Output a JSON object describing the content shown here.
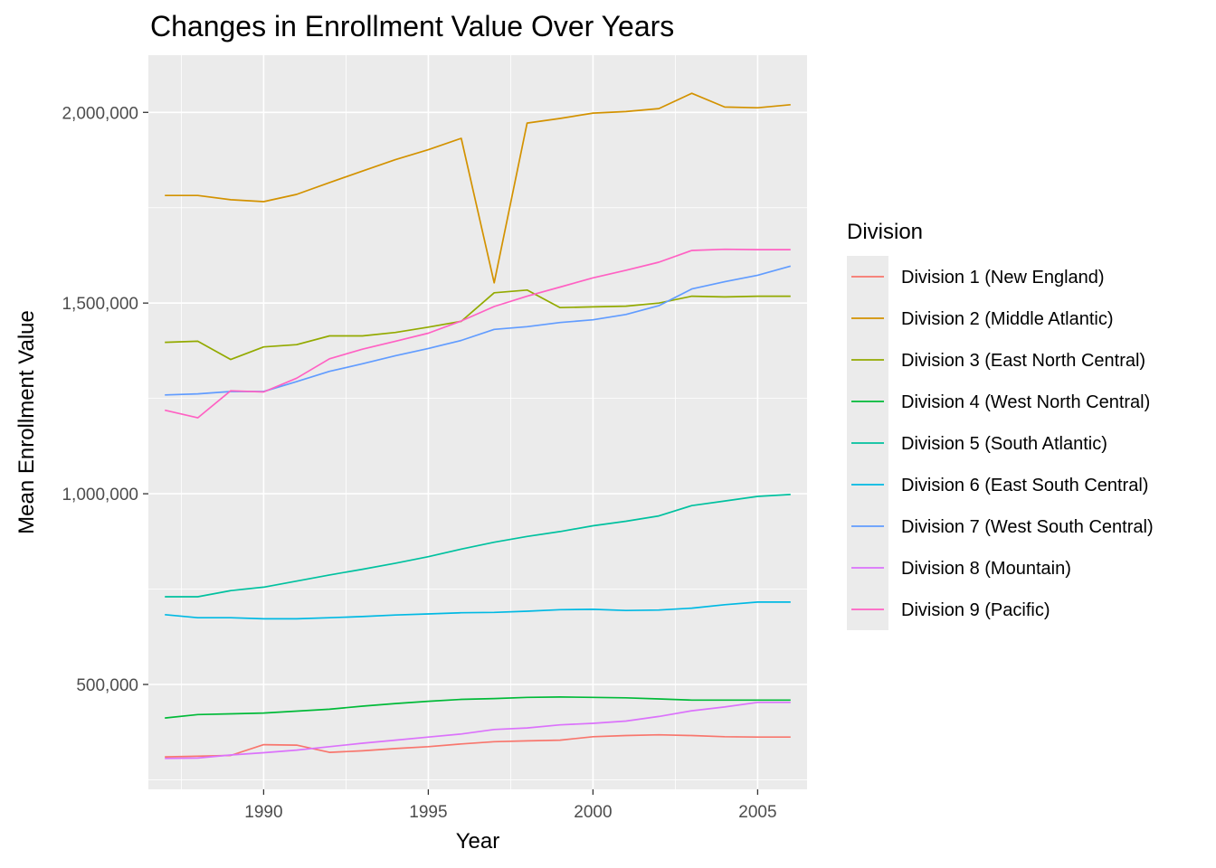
{
  "chart_data": {
    "type": "line",
    "title": "Changes in Enrollment Value Over Years",
    "xlabel": "Year",
    "ylabel": "Mean Enrollment Value",
    "xlim": [
      1986.5,
      2006.5
    ],
    "ylim": [
      225000,
      2150000
    ],
    "x_ticks": [
      1990,
      1995,
      2000,
      2005
    ],
    "y_ticks": [
      500000,
      1000000,
      1500000,
      2000000
    ],
    "y_tick_labels": [
      "500,000",
      "1,000,000",
      "1,500,000",
      "2,000,000"
    ],
    "grid": true,
    "legend_title": "Division",
    "legend_position": "right",
    "x": [
      1987,
      1988,
      1989,
      1990,
      1991,
      1992,
      1993,
      1994,
      1995,
      1996,
      1997,
      1998,
      1999,
      2000,
      2001,
      2002,
      2003,
      2004,
      2005,
      2006
    ],
    "series": [
      {
        "name": "Division 1 (New England)",
        "color": "#F8766D",
        "values": [
          310000,
          312000,
          314000,
          342000,
          341000,
          322000,
          326000,
          332000,
          337000,
          344000,
          350000,
          352000,
          354000,
          363000,
          366000,
          368000,
          366000,
          363000,
          362000,
          362000
        ]
      },
      {
        "name": "Division 2 (Middle Atlantic)",
        "color": "#D39200",
        "values": [
          1782000,
          1782000,
          1771000,
          1766000,
          1785000,
          1816000,
          1846000,
          1876000,
          1902000,
          1932000,
          1553000,
          1972000,
          1984000,
          1998000,
          2002000,
          2010000,
          2050000,
          2014000,
          2012000,
          2020000
        ]
      },
      {
        "name": "Division 3 (East North Central)",
        "color": "#93AA00",
        "values": [
          1397000,
          1400000,
          1352000,
          1385000,
          1391000,
          1414000,
          1414000,
          1423000,
          1437000,
          1452000,
          1527000,
          1534000,
          1488000,
          1490000,
          1492000,
          1500000,
          1518000,
          1516000,
          1518000,
          1518000
        ]
      },
      {
        "name": "Division 4 (West North Central)",
        "color": "#00BA38",
        "values": [
          412000,
          421000,
          423000,
          425000,
          430000,
          435000,
          443000,
          450000,
          456000,
          461000,
          463000,
          466000,
          467000,
          466000,
          465000,
          462000,
          459000,
          459000,
          459000,
          459000
        ]
      },
      {
        "name": "Division 5 (South Atlantic)",
        "color": "#00C19F",
        "values": [
          730000,
          730000,
          746000,
          755000,
          771000,
          787000,
          802000,
          818000,
          835000,
          855000,
          873000,
          888000,
          901000,
          916000,
          928000,
          942000,
          969000,
          981000,
          993000,
          998000
        ]
      },
      {
        "name": "Division 6 (East South Central)",
        "color": "#00B9E3",
        "values": [
          683000,
          675000,
          675000,
          672000,
          672000,
          675000,
          678000,
          682000,
          685000,
          688000,
          689000,
          692000,
          696000,
          697000,
          694000,
          695000,
          700000,
          709000,
          716000,
          716000
        ]
      },
      {
        "name": "Division 7 (West South Central)",
        "color": "#619CFF",
        "values": [
          1259000,
          1262000,
          1268000,
          1268000,
          1294000,
          1321000,
          1341000,
          1362000,
          1381000,
          1402000,
          1431000,
          1438000,
          1449000,
          1456000,
          1470000,
          1493000,
          1537000,
          1556000,
          1573000,
          1597000
        ]
      },
      {
        "name": "Division 8 (Mountain)",
        "color": "#DB72FB",
        "values": [
          306000,
          307000,
          315000,
          321000,
          328000,
          337000,
          346000,
          354000,
          362000,
          370000,
          382000,
          386000,
          394000,
          398000,
          404000,
          416000,
          431000,
          441000,
          453000,
          453000
        ]
      },
      {
        "name": "Division 9 (Pacific)",
        "color": "#FF61C3",
        "values": [
          1219000,
          1199000,
          1270000,
          1267000,
          1303000,
          1354000,
          1379000,
          1400000,
          1421000,
          1453000,
          1491000,
          1518000,
          1542000,
          1566000,
          1586000,
          1607000,
          1638000,
          1641000,
          1640000,
          1640000
        ]
      }
    ]
  }
}
